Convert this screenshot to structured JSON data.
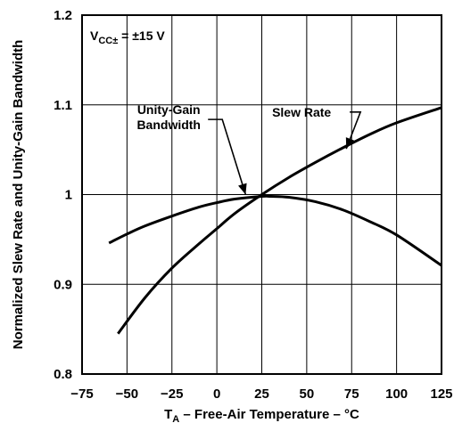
{
  "chart_data": {
    "type": "line",
    "title": "",
    "xlabel": {
      "main": "T",
      "sub": "A",
      "rest": " – Free-Air Temperature – °C"
    },
    "ylabel": "Normalized Slew Rate and Unity-Gain Bandwidth",
    "xlim": [
      -75,
      125
    ],
    "ylim": [
      0.8,
      1.2
    ],
    "xticks": [
      -75,
      -50,
      -25,
      0,
      25,
      50,
      75,
      100,
      125
    ],
    "yticks": [
      0.8,
      0.9,
      1,
      1.1,
      1.2
    ],
    "xtick_labels": [
      "−75",
      "−50",
      "−25",
      "0",
      "25",
      "50",
      "75",
      "100",
      "125"
    ],
    "ytick_labels": [
      "0.8",
      "0.9",
      "1",
      "1.1",
      "1.2"
    ],
    "grid": true,
    "condition": {
      "main": "V",
      "sub": "CC±",
      "rest": "  =  ±15 V"
    },
    "series": [
      {
        "name": "Slew Rate",
        "x": [
          -55,
          -40,
          -25,
          -10,
          0,
          10,
          25,
          40,
          55,
          70,
          85,
          100,
          125
        ],
        "y": [
          0.845,
          0.885,
          0.918,
          0.945,
          0.962,
          0.979,
          1.0,
          1.019,
          1.036,
          1.052,
          1.067,
          1.08,
          1.097
        ]
      },
      {
        "name": "Unity-Gain Bandwidth",
        "x": [
          -60,
          -50,
          -40,
          -25,
          -10,
          0,
          10,
          25,
          30,
          40,
          55,
          70,
          85,
          100,
          125
        ],
        "y": [
          0.946,
          0.956,
          0.965,
          0.976,
          0.986,
          0.991,
          0.995,
          0.998,
          0.998,
          0.997,
          0.992,
          0.983,
          0.97,
          0.955,
          0.921
        ]
      }
    ],
    "annotations": [
      {
        "label": "Slew Rate",
        "x": 68,
        "y": 1.098,
        "target_x": 72,
        "target_y": 1.051
      },
      {
        "label_lines": [
          "Unity-Gain",
          "Bandwidth"
        ],
        "x": 6,
        "y": 1.05,
        "target_x": 16,
        "target_y": 0.997
      }
    ]
  }
}
